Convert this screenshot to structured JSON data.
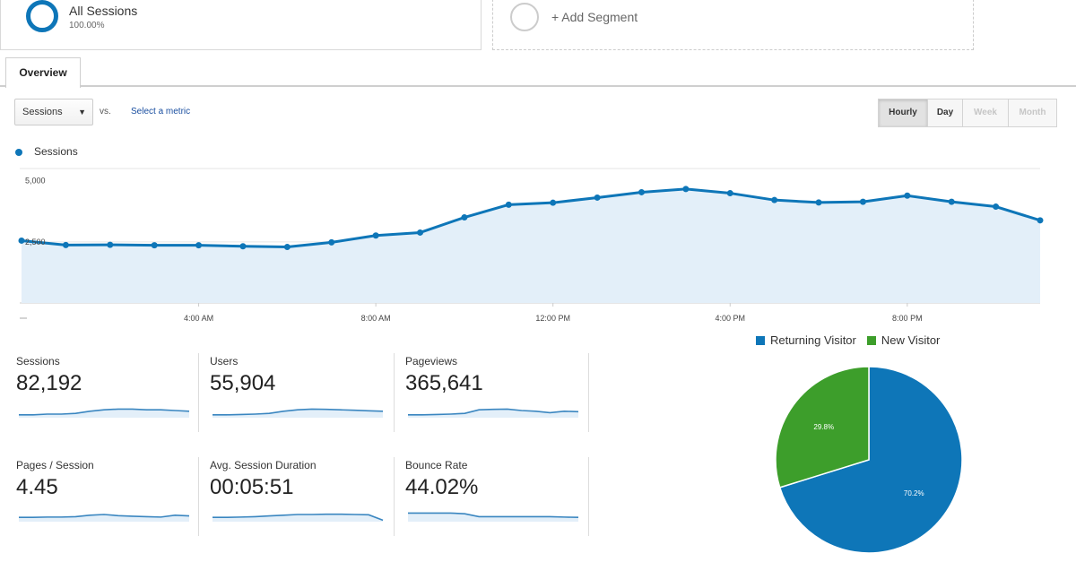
{
  "segments": {
    "active": {
      "name": "All Sessions",
      "percent": "100.00%"
    },
    "add_label": "+ Add Segment"
  },
  "tabs": [
    {
      "label": "Overview"
    }
  ],
  "controls": {
    "metric_select": "Sessions",
    "vs_label": "vs.",
    "select_metric_link": "Select a metric",
    "periods": [
      {
        "label": "Hourly",
        "state": "active"
      },
      {
        "label": "Day",
        "state": "normal"
      },
      {
        "label": "Week",
        "state": "disabled"
      },
      {
        "label": "Month",
        "state": "disabled"
      }
    ]
  },
  "main_chart": {
    "legend": "Sessions",
    "color": "#0e76b8",
    "fill": "#e3eff9"
  },
  "scorecards": [
    {
      "label": "Sessions",
      "value": "82,192",
      "spark": [
        0.2,
        0.2,
        0.25,
        0.25,
        0.3,
        0.45,
        0.55,
        0.6,
        0.6,
        0.55,
        0.55,
        0.5,
        0.45
      ]
    },
    {
      "label": "Users",
      "value": "55,904",
      "spark": [
        0.2,
        0.2,
        0.22,
        0.25,
        0.3,
        0.45,
        0.55,
        0.6,
        0.58,
        0.55,
        0.52,
        0.48,
        0.45
      ]
    },
    {
      "label": "Pageviews",
      "value": "365,641",
      "spark": [
        0.2,
        0.2,
        0.22,
        0.25,
        0.3,
        0.55,
        0.58,
        0.6,
        0.5,
        0.45,
        0.35,
        0.45,
        0.42
      ]
    },
    {
      "label": "Pages / Session",
      "value": "4.45",
      "spark": [
        0.3,
        0.3,
        0.32,
        0.32,
        0.35,
        0.45,
        0.5,
        0.42,
        0.38,
        0.35,
        0.32,
        0.45,
        0.4
      ]
    },
    {
      "label": "Avg. Session Duration",
      "value": "00:05:51",
      "spark": [
        0.3,
        0.3,
        0.32,
        0.35,
        0.4,
        0.45,
        0.5,
        0.5,
        0.52,
        0.52,
        0.5,
        0.48,
        0.1
      ]
    },
    {
      "label": "Bounce Rate",
      "value": "44.02%",
      "spark": [
        0.6,
        0.6,
        0.6,
        0.6,
        0.55,
        0.35,
        0.35,
        0.35,
        0.35,
        0.35,
        0.35,
        0.32,
        0.3
      ]
    }
  ],
  "pie": {
    "legend": [
      {
        "label": "Returning Visitor",
        "color": "#0e76b8"
      },
      {
        "label": "New Visitor",
        "color": "#3d9e2b"
      }
    ],
    "labels": [
      "70.2%",
      "29.8%"
    ]
  },
  "chart_data": [
    {
      "type": "line",
      "title": "Sessions",
      "series": [
        {
          "name": "Sessions",
          "values": [
            2550,
            2370,
            2380,
            2360,
            2360,
            2320,
            2290,
            2480,
            2760,
            2880,
            3500,
            4020,
            4100,
            4310,
            4530,
            4660,
            4490,
            4210,
            4110,
            4140,
            4390,
            4140,
            3940,
            3380
          ]
        }
      ],
      "x_ticks": [
        "4:00 AM",
        "8:00 AM",
        "12:00 PM",
        "4:00 PM",
        "8:00 PM"
      ],
      "y_ticks": [
        "5,000",
        "2,500"
      ],
      "ylim": [
        0,
        5500
      ]
    },
    {
      "type": "pie",
      "categories": [
        "Returning Visitor",
        "New Visitor"
      ],
      "values": [
        70.2,
        29.8
      ]
    }
  ]
}
